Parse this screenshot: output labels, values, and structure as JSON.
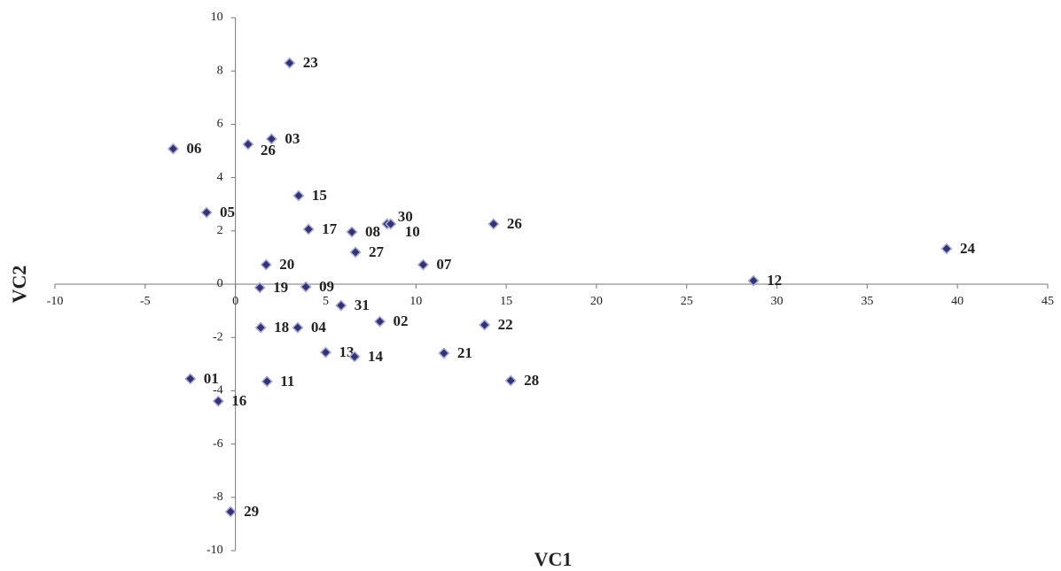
{
  "chart_data": {
    "type": "scatter",
    "x_label": "VC1",
    "y_label": "VC2",
    "xlim": [
      -10,
      45
    ],
    "ylim": [
      -10,
      10
    ],
    "xticks": [
      -10,
      -5,
      0,
      5,
      10,
      15,
      20,
      25,
      30,
      35,
      40,
      45
    ],
    "yticks": [
      -10,
      -8,
      -6,
      -4,
      -2,
      0,
      2,
      4,
      6,
      8,
      10
    ],
    "color": "#33336e",
    "edge_color": "#a9a9dc",
    "labels": [
      "23",
      "03",
      "26",
      "06",
      "15",
      "05",
      "17",
      "08",
      "30",
      "10",
      "26",
      "24",
      "27",
      "07",
      "20",
      "12",
      "19",
      "09",
      "31",
      "02",
      "22",
      "18",
      "04",
      "13",
      "14",
      "21",
      "28",
      "01",
      "11",
      "16",
      "29"
    ],
    "x": [
      3.0,
      2.0,
      0.7,
      -3.45,
      3.5,
      -1.6,
      4.05,
      6.45,
      8.4,
      8.6,
      14.3,
      39.4,
      6.65,
      10.4,
      1.7,
      28.7,
      1.35,
      3.9,
      5.85,
      8.0,
      13.8,
      1.4,
      3.45,
      5.0,
      6.6,
      11.55,
      15.25,
      -2.5,
      1.75,
      -0.95,
      -0.27
    ],
    "values": [
      8.3,
      5.45,
      5.25,
      5.08,
      3.32,
      2.69,
      2.06,
      1.96,
      2.26,
      2.26,
      2.26,
      1.33,
      1.2,
      0.73,
      0.73,
      0.13,
      -0.13,
      -0.1,
      -0.8,
      -1.4,
      -1.53,
      -1.63,
      -1.63,
      -2.56,
      -2.72,
      -2.59,
      -3.62,
      -3.55,
      -3.65,
      -4.39,
      -8.54
    ]
  }
}
